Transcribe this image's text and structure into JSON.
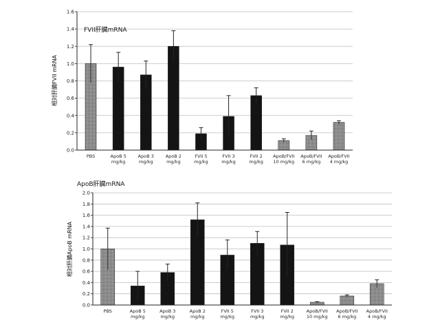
{
  "chart_data": [
    {
      "type": "bar",
      "title": "FVII肝臓mRNA",
      "ylabel": "相対肝臓FVII mRNA",
      "xlabel": "",
      "ylim": [
        0,
        1.6
      ],
      "ytick_step": 0.2,
      "grid": true,
      "categories": [
        [
          "PBS"
        ],
        [
          "ApoB 5",
          "mg/kg"
        ],
        [
          "ApoB 3",
          "mg/kg"
        ],
        [
          "ApoB 2",
          "mg/kg"
        ],
        [
          "FVII 5",
          "mg/kg"
        ],
        [
          "FVII 3",
          "mg/kg"
        ],
        [
          "FVII 2",
          "mg/kg"
        ],
        [
          "ApoB/FVII",
          "10 mg/kg"
        ],
        [
          "ApoB/FVII",
          "6 mg/kg"
        ],
        [
          "ApoB/FVII",
          "4 mg/kg"
        ]
      ],
      "values": [
        1.0,
        0.96,
        0.87,
        1.2,
        0.19,
        0.39,
        0.63,
        0.11,
        0.17,
        0.32
      ],
      "errors": [
        0.22,
        0.17,
        0.16,
        0.18,
        0.07,
        0.24,
        0.09,
        0.02,
        0.05,
        0.02
      ],
      "bar_styles": [
        "gray",
        "black",
        "black",
        "black",
        "black",
        "black",
        "black",
        "gray",
        "gray",
        "gray"
      ]
    },
    {
      "type": "bar",
      "title": "ApoB肝臓mRNA",
      "ylabel": "相対肝臓ApoB mRNA",
      "xlabel": "",
      "ylim": [
        0,
        2.0
      ],
      "ytick_step": 0.2,
      "grid": true,
      "categories": [
        [
          "PBS"
        ],
        [
          "ApoB 5",
          "mg/kg"
        ],
        [
          "ApoB 3",
          "mg/kg"
        ],
        [
          "ApoB 2",
          "mg/kg"
        ],
        [
          "FVII 5",
          "mg/kg"
        ],
        [
          "FVII 3",
          "mg/kg"
        ],
        [
          "FVII 2",
          "mg/kg"
        ],
        [
          "ApoB/FVII",
          "10 mg/kg"
        ],
        [
          "ApoB/FVII",
          "6 mg/kg"
        ],
        [
          "ApoB/FVII",
          "4 mg/kg"
        ]
      ],
      "values": [
        1.0,
        0.34,
        0.58,
        1.52,
        0.89,
        1.1,
        1.07,
        0.05,
        0.16,
        0.38
      ],
      "errors": [
        0.37,
        0.26,
        0.15,
        0.3,
        0.27,
        0.21,
        0.58,
        0.01,
        0.02,
        0.07
      ],
      "bar_styles": [
        "gray",
        "black",
        "black",
        "black",
        "black",
        "black",
        "black",
        "gray",
        "gray",
        "gray"
      ]
    }
  ],
  "colors": {
    "black_bar": "#141414",
    "gray_bar": "#8c8c8c",
    "axis": "#222222",
    "grid": "#bdbdbd",
    "error_bar": "#222222"
  }
}
